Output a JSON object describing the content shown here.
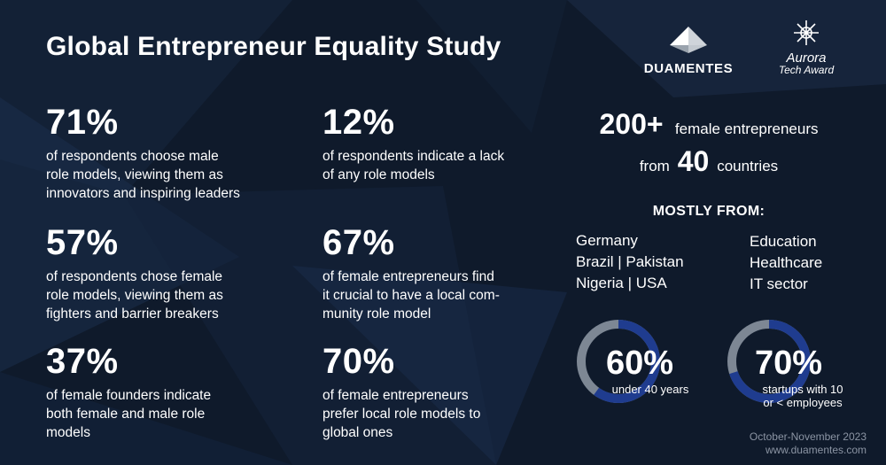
{
  "title": "Global Entrepreneur Equality Study",
  "logos": {
    "duamentes": "DUAMENTES",
    "aurora": "Aurora",
    "aurora_sub": "Tech Award"
  },
  "stats": [
    {
      "value": "71%",
      "lines": [
        "of respondents choose male",
        "role models, viewing them as",
        "innovators and inspiring leaders"
      ]
    },
    {
      "value": "12%",
      "lines": [
        "of respondents indicate a lack",
        "of any role models"
      ]
    },
    {
      "value": "57%",
      "lines": [
        "of respondents chose female",
        "role models, viewing them as",
        "fighters and barrier breakers"
      ]
    },
    {
      "value": "67%",
      "lines": [
        "of female entrepreneurs find",
        "it crucial to have a local com-",
        "munity role model"
      ]
    },
    {
      "value": "37%",
      "lines": [
        "of female founders indicate",
        "both female and male role",
        "models"
      ]
    },
    {
      "value": "70%",
      "lines": [
        "of female entrepreneurs",
        "prefer local role models to",
        "global ones"
      ]
    }
  ],
  "summary": {
    "count": "200+",
    "count_label": "female entrepreneurs",
    "from_label": "from",
    "countries_count": "40",
    "countries_label": "countries"
  },
  "mostly_from": {
    "heading": "MOSTLY FROM:",
    "countries": [
      "Germany",
      "Brazil | Pakistan",
      "Nigeria | USA"
    ],
    "sectors": [
      "Education",
      "Healthcare",
      "IT sector"
    ]
  },
  "donuts": [
    {
      "value": "60%",
      "fraction": 0.6,
      "caption_lines": [
        "under 40 years"
      ],
      "fill_color": "#1f3c8f",
      "track_color": "#7d8794"
    },
    {
      "value": "70%",
      "fraction": 0.7,
      "caption_lines": [
        "startups with 10",
        "or < employees"
      ],
      "fill_color": "#1f3c8f",
      "track_color": "#7d8794"
    }
  ],
  "footer": {
    "date": "October-November 2023",
    "url": "www.duamentes.com"
  },
  "colors": {
    "background": "#0f1a2b",
    "text": "#ffffff",
    "footer_text": "#8b94a3"
  }
}
